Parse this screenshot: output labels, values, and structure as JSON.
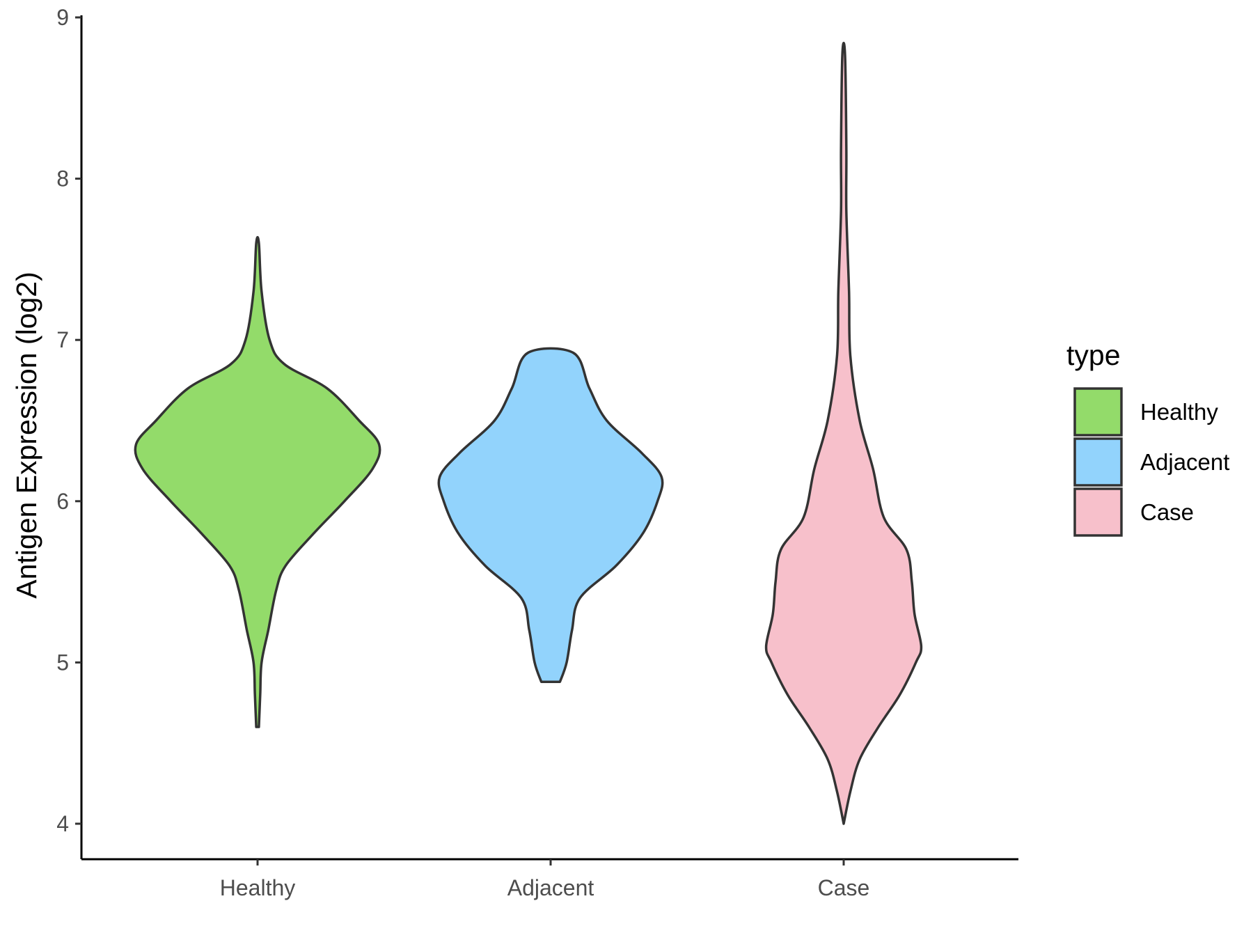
{
  "chart_data": {
    "type": "violin",
    "title": "",
    "xlabel": "",
    "ylabel": "Antigen Expression (log2)",
    "ylim": [
      3.78,
      9.0
    ],
    "yticks": [
      4,
      5,
      6,
      7,
      8,
      9
    ],
    "categories": [
      "Healthy",
      "Adjacent",
      "Case"
    ],
    "grid": false,
    "legend": {
      "title": "type",
      "position": "right",
      "items": [
        {
          "label": "Healthy",
          "color": "#93DB6A"
        },
        {
          "label": "Adjacent",
          "color": "#92D3FC"
        },
        {
          "label": "Case",
          "color": "#F7C0CB"
        }
      ]
    },
    "series": [
      {
        "name": "Healthy",
        "color": "#93DB6A",
        "min": 4.6,
        "max": 7.6,
        "density_profile": [
          [
            4.6,
            0.01
          ],
          [
            4.8,
            0.02
          ],
          [
            5.0,
            0.03
          ],
          [
            5.2,
            0.08
          ],
          [
            5.45,
            0.14
          ],
          [
            5.6,
            0.21
          ],
          [
            5.8,
            0.42
          ],
          [
            6.0,
            0.65
          ],
          [
            6.2,
            0.86
          ],
          [
            6.35,
            0.91
          ],
          [
            6.5,
            0.76
          ],
          [
            6.7,
            0.52
          ],
          [
            6.85,
            0.2
          ],
          [
            7.0,
            0.09
          ],
          [
            7.3,
            0.03
          ],
          [
            7.6,
            0.01
          ]
        ]
      },
      {
        "name": "Adjacent",
        "color": "#92D3FC",
        "min": 4.88,
        "max": 6.92,
        "density_profile": [
          [
            4.88,
            0.07
          ],
          [
            5.0,
            0.12
          ],
          [
            5.2,
            0.16
          ],
          [
            5.4,
            0.22
          ],
          [
            5.6,
            0.49
          ],
          [
            5.8,
            0.69
          ],
          [
            6.0,
            0.8
          ],
          [
            6.15,
            0.83
          ],
          [
            6.3,
            0.68
          ],
          [
            6.5,
            0.42
          ],
          [
            6.7,
            0.29
          ],
          [
            6.92,
            0.17
          ]
        ]
      },
      {
        "name": "Case",
        "color": "#F7C0CB",
        "min": 4.0,
        "max": 8.77,
        "density_profile": [
          [
            4.0,
            0.0
          ],
          [
            4.2,
            0.05
          ],
          [
            4.4,
            0.12
          ],
          [
            4.6,
            0.26
          ],
          [
            4.8,
            0.42
          ],
          [
            5.0,
            0.54
          ],
          [
            5.1,
            0.58
          ],
          [
            5.3,
            0.53
          ],
          [
            5.5,
            0.51
          ],
          [
            5.7,
            0.47
          ],
          [
            5.9,
            0.3
          ],
          [
            6.2,
            0.22
          ],
          [
            6.5,
            0.12
          ],
          [
            6.9,
            0.05
          ],
          [
            7.3,
            0.04
          ],
          [
            7.8,
            0.02
          ],
          [
            8.2,
            0.02
          ],
          [
            8.77,
            0.01
          ]
        ]
      }
    ]
  }
}
